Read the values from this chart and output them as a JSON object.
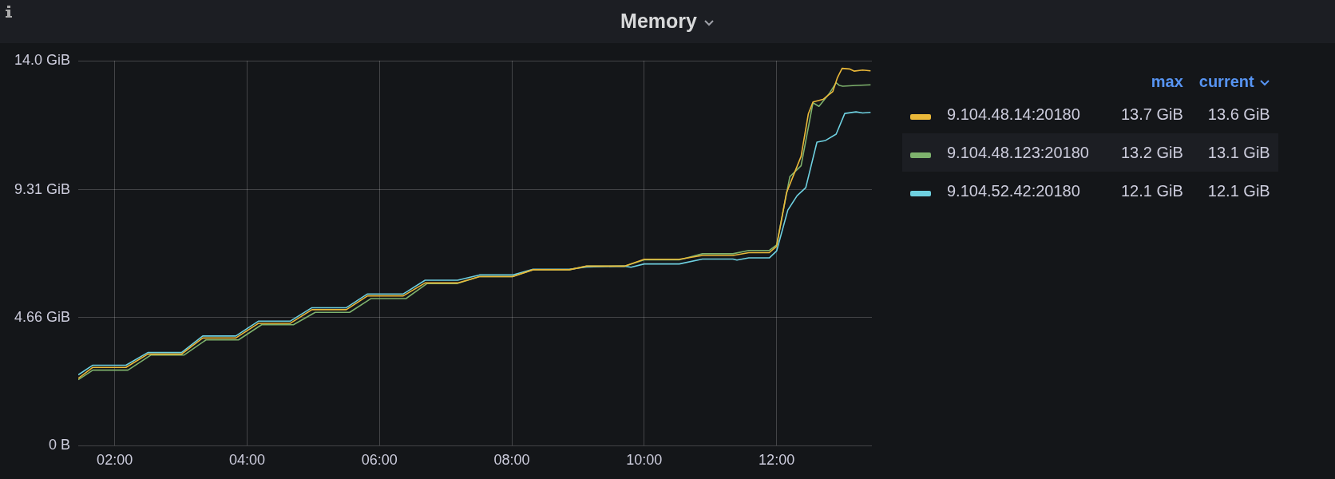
{
  "chart_data": {
    "type": "line",
    "title": "Memory",
    "xlim": [
      1.45,
      13.44
    ],
    "xticks": [
      {
        "value": 2,
        "label": "02:00"
      },
      {
        "value": 4,
        "label": "04:00"
      },
      {
        "value": 6,
        "label": "06:00"
      },
      {
        "value": 8,
        "label": "08:00"
      },
      {
        "value": 10,
        "label": "10:00"
      },
      {
        "value": 12,
        "label": "12:00"
      }
    ],
    "ylim": [
      0,
      14.0
    ],
    "yticks": [
      {
        "value": 0,
        "label": "0 B"
      },
      {
        "value": 4.66,
        "label": "4.66 GiB"
      },
      {
        "value": 9.31,
        "label": "9.31 GiB"
      },
      {
        "value": 14.0,
        "label": "14.0 GiB"
      }
    ],
    "grid": true,
    "legend": "right",
    "marker": "none",
    "line_style": "solid",
    "annotations": [
      "max",
      "current",
      "13.7 GiB",
      "13.6 GiB",
      "13.2 GiB",
      "13.1 GiB",
      "12.1 GiB",
      "12.1 GiB"
    ],
    "series": [
      {
        "name": "9.104.48.14:20180",
        "color": "#eab839",
        "x": [
          1.45,
          1.67,
          2.17,
          2.5,
          3.01,
          3.33,
          3.83,
          4.17,
          4.65,
          4.98,
          5.5,
          5.82,
          6.36,
          6.69,
          7.18,
          7.51,
          8.01,
          8.32,
          8.87,
          9.13,
          9.7,
          10.0,
          10.53,
          10.88,
          11.34,
          11.58,
          11.89,
          12.0,
          12.15,
          12.37,
          12.48,
          12.55,
          12.7,
          12.85,
          12.92,
          12.99,
          13.1,
          13.17,
          13.3,
          13.42
        ],
        "values": [
          2.45,
          2.85,
          2.85,
          3.33,
          3.33,
          3.92,
          3.92,
          4.45,
          4.45,
          4.95,
          4.95,
          5.45,
          5.45,
          5.92,
          5.92,
          6.15,
          6.15,
          6.4,
          6.4,
          6.53,
          6.53,
          6.78,
          6.78,
          6.92,
          6.92,
          7.02,
          7.02,
          7.25,
          9.2,
          10.52,
          12.07,
          12.5,
          12.59,
          12.88,
          13.39,
          13.72,
          13.7,
          13.62,
          13.66,
          13.63
        ]
      },
      {
        "name": "9.104.48.123:20180",
        "color": "#7eb26d",
        "x": [
          1.45,
          1.67,
          2.2,
          2.55,
          3.05,
          3.38,
          3.87,
          4.22,
          4.7,
          5.03,
          5.55,
          5.87,
          6.4,
          6.72,
          7.18,
          7.51,
          8.01,
          8.32,
          8.87,
          9.13,
          9.7,
          10.0,
          10.53,
          10.88,
          11.34,
          11.58,
          11.89,
          12.0,
          12.2,
          12.37,
          12.55,
          12.64,
          12.8,
          12.9,
          12.95,
          13.0,
          13.2,
          13.42
        ],
        "values": [
          2.4,
          2.75,
          2.75,
          3.3,
          3.3,
          3.85,
          3.85,
          4.4,
          4.4,
          4.85,
          4.85,
          5.35,
          5.35,
          5.9,
          5.9,
          6.15,
          6.15,
          6.4,
          6.4,
          6.53,
          6.53,
          6.76,
          6.76,
          6.98,
          6.98,
          7.1,
          7.1,
          7.3,
          9.78,
          10.18,
          12.47,
          12.34,
          12.82,
          13.2,
          13.1,
          13.07,
          13.1,
          13.12
        ]
      },
      {
        "name": "9.104.52.42:20180",
        "color": "#6ed0e0",
        "x": [
          1.45,
          1.67,
          2.17,
          2.5,
          3.01,
          3.33,
          3.83,
          4.17,
          4.65,
          4.98,
          5.5,
          5.82,
          6.36,
          6.69,
          7.18,
          7.51,
          8.01,
          8.32,
          8.87,
          9.13,
          9.7,
          9.8,
          10.0,
          10.53,
          10.88,
          11.34,
          11.4,
          11.58,
          11.89,
          12.0,
          12.17,
          12.31,
          12.44,
          12.61,
          12.74,
          12.9,
          13.03,
          13.2,
          13.3,
          13.42
        ],
        "values": [
          2.58,
          2.93,
          2.93,
          3.39,
          3.39,
          3.99,
          3.99,
          4.53,
          4.53,
          5.02,
          5.02,
          5.52,
          5.52,
          6.02,
          6.02,
          6.21,
          6.21,
          6.42,
          6.42,
          6.5,
          6.53,
          6.49,
          6.61,
          6.61,
          6.79,
          6.79,
          6.75,
          6.83,
          6.83,
          7.08,
          8.57,
          9.09,
          9.38,
          11.04,
          11.1,
          11.33,
          12.08,
          12.14,
          12.1,
          12.12
        ]
      }
    ]
  }
}
